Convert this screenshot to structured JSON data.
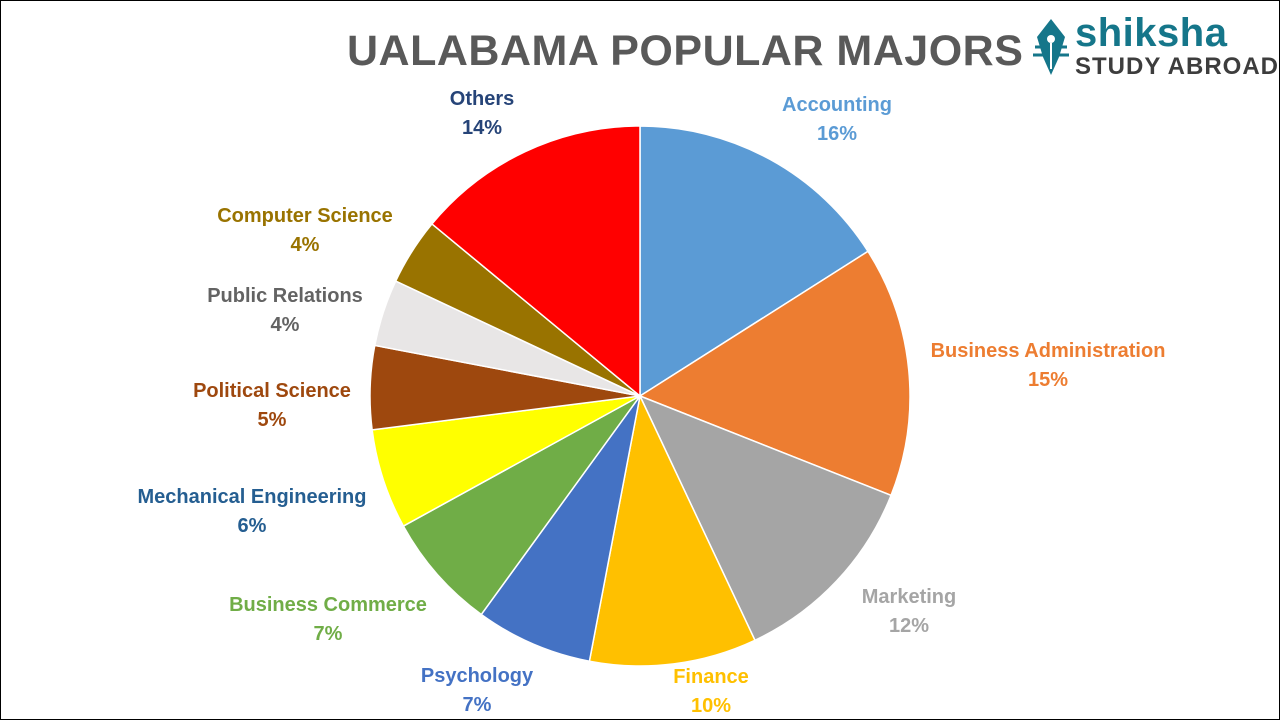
{
  "logo": {
    "name": "shiksha",
    "tagline": "STUDY ABROAD"
  },
  "chart_data": {
    "type": "pie",
    "title": "UALABAMA POPULAR MAJORS",
    "value_suffix": "%",
    "slices": [
      {
        "label": "Accounting",
        "value": 16,
        "color": "#5B9BD5"
      },
      {
        "label": "Business Administration",
        "value": 15,
        "color": "#ED7D31"
      },
      {
        "label": "Marketing",
        "value": 12,
        "color": "#A5A5A5"
      },
      {
        "label": "Finance",
        "value": 10,
        "color": "#FFC000"
      },
      {
        "label": "Psychology",
        "value": 7,
        "color": "#4472C4"
      },
      {
        "label": "Business Commerce",
        "value": 7,
        "color": "#70AD47"
      },
      {
        "label": "Mechanical Engineering",
        "value": 6,
        "color": "#FFFF00"
      },
      {
        "label": "Political Science",
        "value": 5,
        "color": "#9E480E"
      },
      {
        "label": "Public Relations",
        "value": 4,
        "color": "#E8E6E6"
      },
      {
        "label": "Computer Science",
        "value": 4,
        "color": "#997300"
      },
      {
        "label": "Others",
        "value": 14,
        "color": "#FF0000"
      }
    ],
    "label_colors": [
      "#5B9BD5",
      "#ED7D31",
      "#A5A5A5",
      "#FFC000",
      "#4472C4",
      "#70AD47",
      "#255E91",
      "#9E480E",
      "#636363",
      "#997300",
      "#264478"
    ]
  }
}
